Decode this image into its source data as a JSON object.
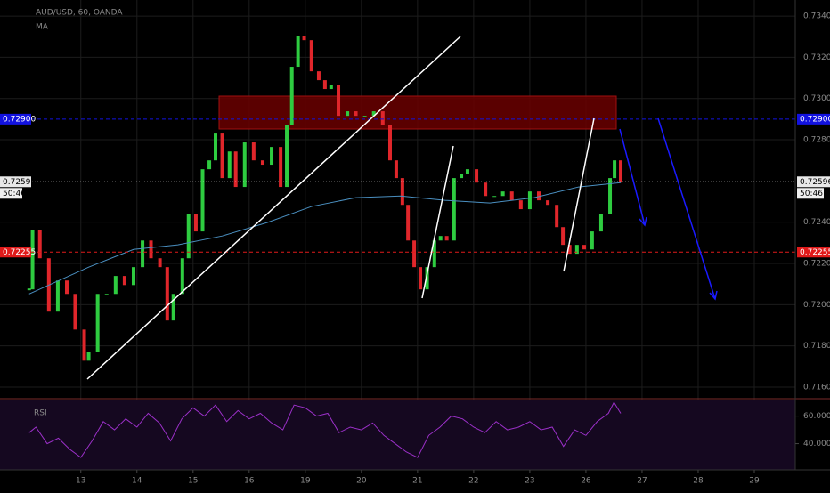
{
  "chart_data": [
    {
      "type": "candlestick",
      "title": "AUD/USD, 60, OANDA",
      "indicator": "MA",
      "up_color": "#2ecc40",
      "down_color": "#e0262b",
      "grid": true,
      "xlim": [
        -1.44,
        12.73
      ],
      "ylim": [
        0.71548,
        0.73478
      ],
      "xticks": [
        {
          "value": 0,
          "label": "13"
        },
        {
          "value": 1,
          "label": "14"
        },
        {
          "value": 2,
          "label": "15"
        },
        {
          "value": 3,
          "label": "16"
        },
        {
          "value": 4,
          "label": "19"
        },
        {
          "value": 5,
          "label": "20"
        },
        {
          "value": 6,
          "label": "21"
        },
        {
          "value": 7,
          "label": "22"
        },
        {
          "value": 8,
          "label": "23"
        },
        {
          "value": 9,
          "label": "26"
        },
        {
          "value": 10,
          "label": "27"
        },
        {
          "value": 11,
          "label": "28"
        },
        {
          "value": 12,
          "label": "29"
        }
      ],
      "yticks": [
        {
          "value": 0.734,
          "label": "0.73400"
        },
        {
          "value": 0.732,
          "label": "0.73200"
        },
        {
          "value": 0.73,
          "label": "0.73000"
        },
        {
          "value": 0.728,
          "label": "0.72800"
        },
        {
          "value": 0.724,
          "label": "0.72400"
        },
        {
          "value": 0.722,
          "label": "0.72200"
        },
        {
          "value": 0.72,
          "label": "0.72000"
        },
        {
          "value": 0.718,
          "label": "0.71800"
        },
        {
          "value": 0.716,
          "label": "0.71600"
        }
      ],
      "x": [
        -0.92,
        -0.86,
        -0.73,
        -0.57,
        -0.41,
        -0.25,
        -0.1,
        0.06,
        0.14,
        0.3,
        0.46,
        0.62,
        0.78,
        0.94,
        1.1,
        1.25,
        1.41,
        1.54,
        1.65,
        1.81,
        1.92,
        2.05,
        2.17,
        2.29,
        2.4,
        2.52,
        2.65,
        2.76,
        2.92,
        3.08,
        3.24,
        3.4,
        3.56,
        3.67,
        3.76,
        3.87,
        3.98,
        4.11,
        4.24,
        4.35,
        4.46,
        4.59,
        4.75,
        4.9,
        5.06,
        5.22,
        5.38,
        5.51,
        5.62,
        5.73,
        5.83,
        5.94,
        6.05,
        6.17,
        6.3,
        6.41,
        6.52,
        6.65,
        6.78,
        6.89,
        7.05,
        7.21,
        7.37,
        7.52,
        7.68,
        7.84,
        8.0,
        8.16,
        8.32,
        8.48,
        8.59,
        8.71,
        8.84,
        8.97,
        9.11,
        9.27,
        9.43,
        9.51,
        9.62
      ],
      "values": [
        0.72074,
        0.72363,
        0.72225,
        0.71966,
        0.72117,
        0.72052,
        0.71879,
        0.71728,
        0.71771,
        0.72052,
        0.72052,
        0.72139,
        0.72095,
        0.72182,
        0.72311,
        0.72225,
        0.72182,
        0.71923,
        0.72052,
        0.72225,
        0.72441,
        0.72355,
        0.72657,
        0.727,
        0.7283,
        0.72614,
        0.72743,
        0.72571,
        0.72787,
        0.727,
        0.72679,
        0.72765,
        0.72571,
        0.72873,
        0.73154,
        0.73305,
        0.73283,
        0.73132,
        0.73089,
        0.73046,
        0.73067,
        0.72916,
        0.72938,
        0.72916,
        0.72916,
        0.72938,
        0.72873,
        0.727,
        0.72614,
        0.72484,
        0.72311,
        0.72182,
        0.72074,
        0.72182,
        0.72311,
        0.72333,
        0.72311,
        0.72614,
        0.72635,
        0.72657,
        0.72592,
        0.72527,
        0.72527,
        0.72549,
        0.72506,
        0.72463,
        0.72549,
        0.72506,
        0.72484,
        0.72376,
        0.7229,
        0.72247,
        0.7229,
        0.72268,
        0.72355,
        0.72441,
        0.72614,
        0.727,
        0.72592
      ],
      "ma": {
        "color": "#4a8fc0",
        "x": [
          -0.92,
          0.14,
          0.94,
          1.73,
          2.52,
          3.32,
          4.11,
          4.9,
          5.7,
          6.49,
          7.29,
          8.08,
          8.87,
          9.62
        ],
        "values": [
          0.72052,
          0.72182,
          0.72268,
          0.7229,
          0.72333,
          0.72398,
          0.72476,
          0.72519,
          0.72527,
          0.72506,
          0.72493,
          0.72519,
          0.72571,
          0.72592
        ]
      },
      "price_lines": [
        {
          "value": 0.729,
          "label": "0.72900",
          "color": "#1212e0",
          "text_color": "#ffffff"
        },
        {
          "value": 0.72596,
          "label": "0.72596",
          "color": "#e8e8e8",
          "text_color": "#000000",
          "timer": "50:46"
        },
        {
          "value": 0.72255,
          "label": "0.72255",
          "color": "#e01a1a",
          "text_color": "#ffffff"
        }
      ]
    },
    {
      "type": "line",
      "title": "RSI",
      "color": "#9b30c8",
      "ylim": [
        21,
        72
      ],
      "yticks": [
        {
          "value": 60,
          "label": "60.0000"
        },
        {
          "value": 40,
          "label": "40.0000"
        }
      ],
      "bands": [
        30,
        70
      ],
      "x": [
        -0.92,
        -0.8,
        -0.6,
        -0.4,
        -0.2,
        0.0,
        0.2,
        0.4,
        0.6,
        0.8,
        1.0,
        1.2,
        1.4,
        1.6,
        1.8,
        2.0,
        2.2,
        2.4,
        2.6,
        2.8,
        3.0,
        3.2,
        3.4,
        3.6,
        3.8,
        4.0,
        4.2,
        4.4,
        4.6,
        4.8,
        5.0,
        5.2,
        5.4,
        5.6,
        5.8,
        6.0,
        6.2,
        6.4,
        6.6,
        6.8,
        7.0,
        7.2,
        7.4,
        7.6,
        7.8,
        8.0,
        8.2,
        8.4,
        8.6,
        8.8,
        9.0,
        9.2,
        9.4,
        9.5,
        9.62
      ],
      "values": [
        48,
        52,
        40,
        44,
        36,
        30,
        42,
        56,
        50,
        58,
        52,
        62,
        55,
        42,
        58,
        66,
        60,
        68,
        56,
        64,
        58,
        62,
        55,
        50,
        68,
        66,
        60,
        62,
        48,
        52,
        50,
        55,
        46,
        40,
        34,
        30,
        46,
        52,
        60,
        58,
        52,
        48,
        56,
        50,
        52,
        56,
        50,
        52,
        38,
        50,
        46,
        56,
        62,
        70,
        62
      ]
    }
  ]
}
